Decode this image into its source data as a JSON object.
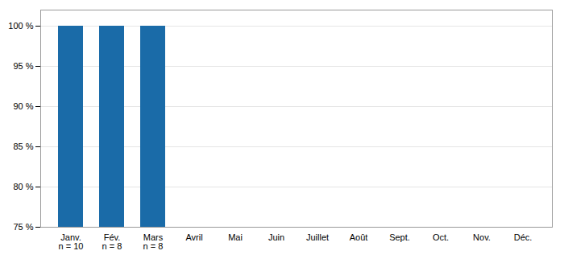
{
  "chart_data": {
    "type": "bar",
    "categories": [
      "Janv.\nn = 10",
      "Fév.\nn = 8",
      "Mars\nn = 8",
      "Avril",
      "Mai",
      "Juin",
      "Juillet",
      "Août",
      "Sept.",
      "Oct.",
      "Nov.",
      "Déc."
    ],
    "values": [
      100,
      100,
      100,
      null,
      null,
      null,
      null,
      null,
      null,
      null,
      null,
      null
    ],
    "color": "#1a6ba8",
    "ylim": [
      75,
      102
    ],
    "yticks": [
      {
        "value": 75,
        "label": "75 %"
      },
      {
        "value": 80,
        "label": "80 %"
      },
      {
        "value": 85,
        "label": "85 %"
      },
      {
        "value": 90,
        "label": "90 %"
      },
      {
        "value": 95,
        "label": "95 %"
      },
      {
        "value": 100,
        "label": "100 %"
      }
    ],
    "grid": true
  }
}
